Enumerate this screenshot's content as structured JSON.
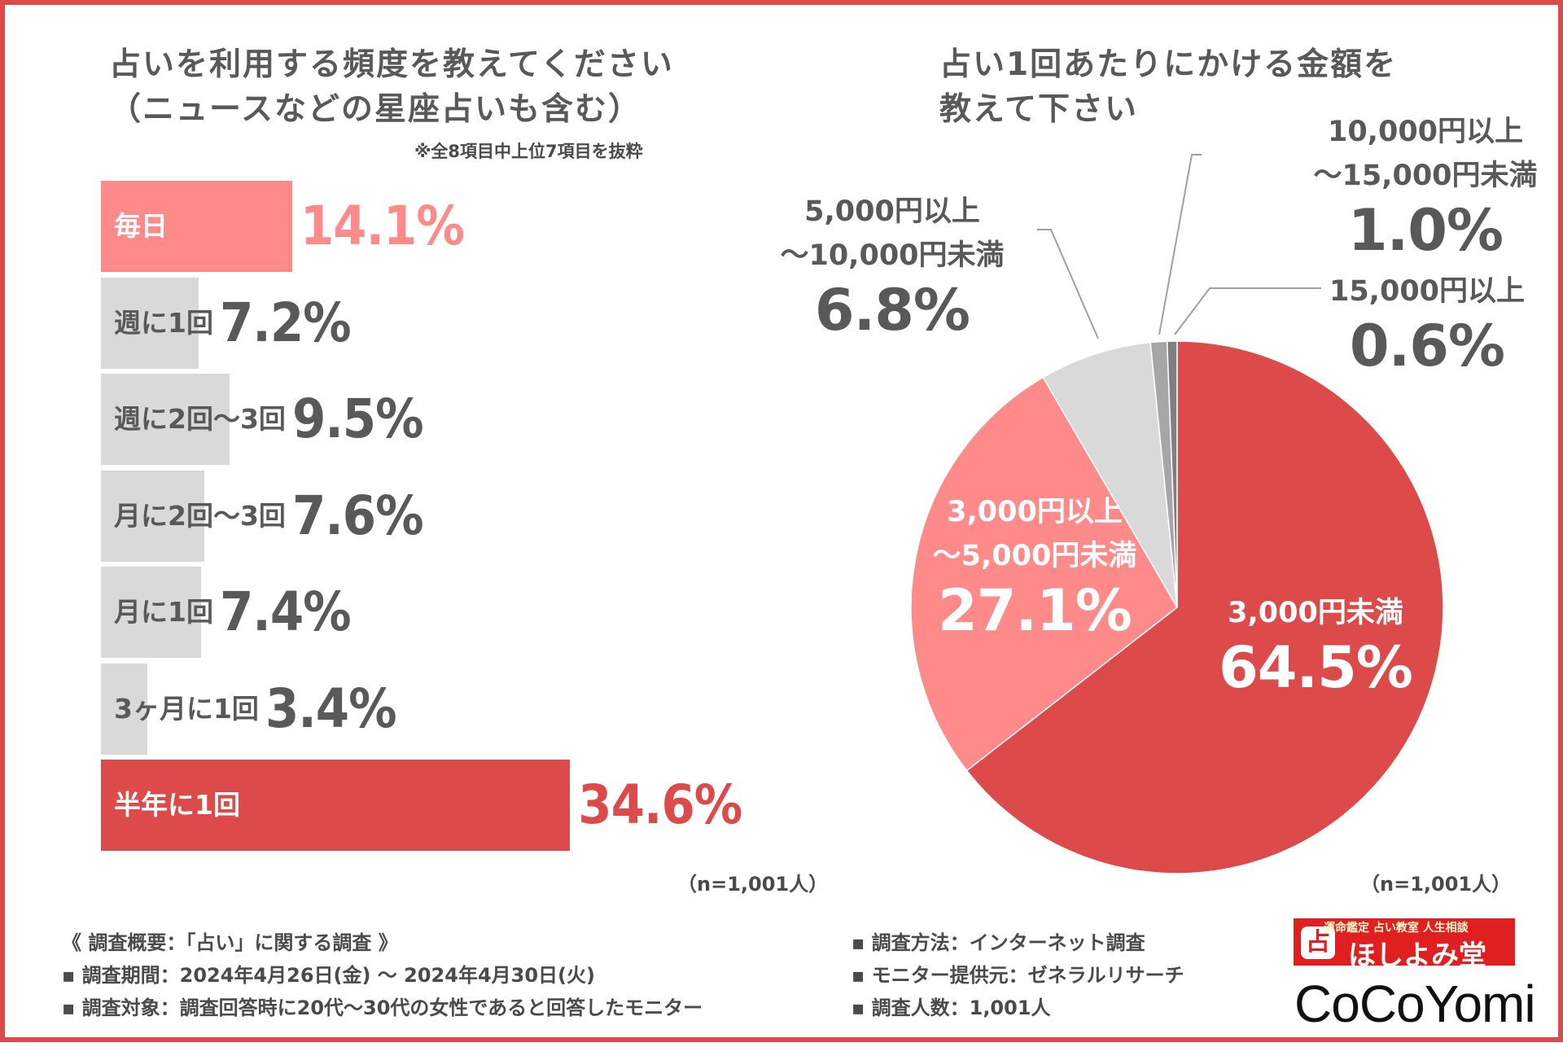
{
  "left": {
    "title_line1": "占いを利用する頻度を教えてください",
    "title_line2": "（ニュースなどの星座占いも含む）",
    "note": "※全8項目中上位7項目を抜粋",
    "n_label": "（n=1,001人）"
  },
  "right": {
    "title_line1": "占い1回あたりにかける金額を",
    "title_line2": "教えて下さい",
    "n_label": "（n=1,001人）"
  },
  "colors": {
    "accent": "#dd4a4a",
    "pink": "#ff8a8a",
    "light_gray": "#d9d9d9",
    "mid_gray": "#a6a6a6",
    "dark_gray": "#7f7f7f",
    "text": "#595959"
  },
  "chart_data": [
    {
      "type": "bar",
      "orientation": "horizontal",
      "title": "占いを利用する頻度を教えてください（ニュースなどの星座占いも含む）",
      "unit": "%",
      "categories": [
        "毎日",
        "週に1回",
        "週に2回〜3回",
        "月に2回〜3回",
        "月に1回",
        "3ヶ月に1回",
        "半年に1回"
      ],
      "values": [
        14.1,
        7.2,
        9.5,
        7.6,
        7.4,
        3.4,
        34.6
      ],
      "labels": [
        "14.1%",
        "7.2%",
        "9.5%",
        "7.6%",
        "7.4%",
        "3.4%",
        "34.6%"
      ],
      "highlight": [
        "pink",
        "gray",
        "gray",
        "gray",
        "gray",
        "gray",
        "red"
      ],
      "xlim": [
        0,
        40
      ]
    },
    {
      "type": "pie",
      "title": "占い1回あたりにかける金額を教えて下さい",
      "slices": [
        {
          "line1": "3,000円未満",
          "line2": "",
          "value": 64.5,
          "label": "64.5%",
          "color": "#dd4a4a"
        },
        {
          "line1": "3,000円以上",
          "line2": "〜5,000円未満",
          "value": 27.1,
          "label": "27.1%",
          "color": "#ff8a8a"
        },
        {
          "line1": "5,000円以上",
          "line2": "〜10,000円未満",
          "value": 6.8,
          "label": "6.8%",
          "color": "#d9d9d9"
        },
        {
          "line1": "10,000円以上",
          "line2": "〜15,000円未満",
          "value": 1.0,
          "label": "1.0%",
          "color": "#a6a6a6"
        },
        {
          "line1": "15,000円以上",
          "line2": "",
          "value": 0.6,
          "label": "0.6%",
          "color": "#7f7f7f"
        }
      ]
    }
  ],
  "footer": {
    "left": [
      "《 調査概要：「占い」に関する調査 》",
      "▪ 調査期間：2024年4月26日(金) 〜 2024年4月30日(火)",
      "▪ 調査対象：調査回答時に20代〜30代の女性であると回答したモニター"
    ],
    "right": [
      "▪ 調査方法：インターネット調査",
      "▪ モニター提供元：ゼネラルリサーチ",
      "▪ 調査人数：1,001人"
    ]
  },
  "brand": {
    "tagline": "運命鑑定 占い教室 人生相談",
    "name": "ほしよみ堂",
    "mark": "占",
    "logo": "CoCoYomi"
  }
}
